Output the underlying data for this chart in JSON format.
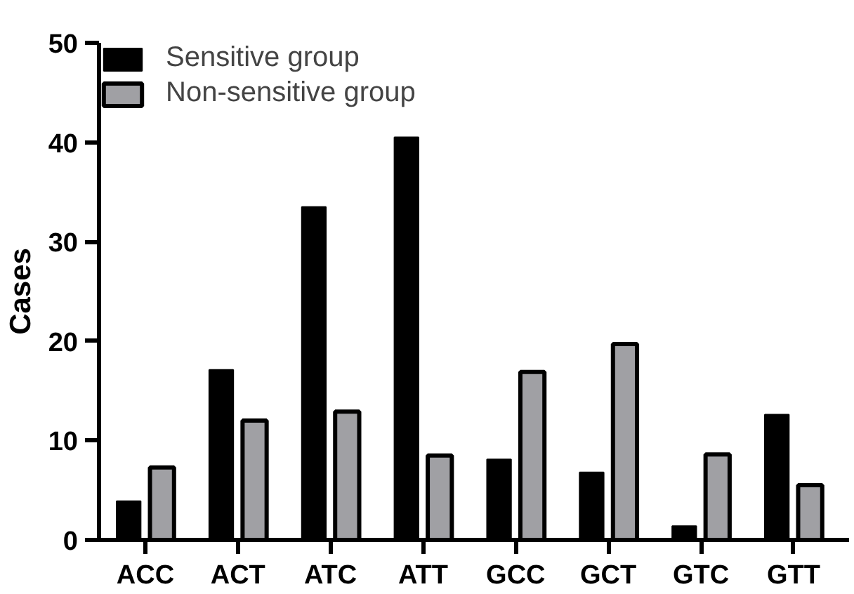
{
  "chart_data": {
    "type": "bar",
    "ylabel": "Cases",
    "categories": [
      "ACC",
      "ACT",
      "ATC",
      "ATT",
      "GCC",
      "GCT",
      "GTC",
      "GTT"
    ],
    "series": [
      {
        "name": "Sensitive group",
        "color": "#000000",
        "values": [
          3.9,
          17.1,
          33.5,
          40.5,
          8.1,
          6.8,
          1.4,
          12.6
        ]
      },
      {
        "name": "Non-sensitive group",
        "color": "#a0a0a4",
        "values": [
          7.3,
          12.0,
          12.9,
          8.5,
          16.9,
          19.7,
          8.6,
          5.5
        ]
      }
    ],
    "ylim": [
      0,
      50
    ],
    "yticks": [
      0,
      10,
      20,
      30,
      40,
      50
    ],
    "grid": false,
    "legend": "top left"
  }
}
